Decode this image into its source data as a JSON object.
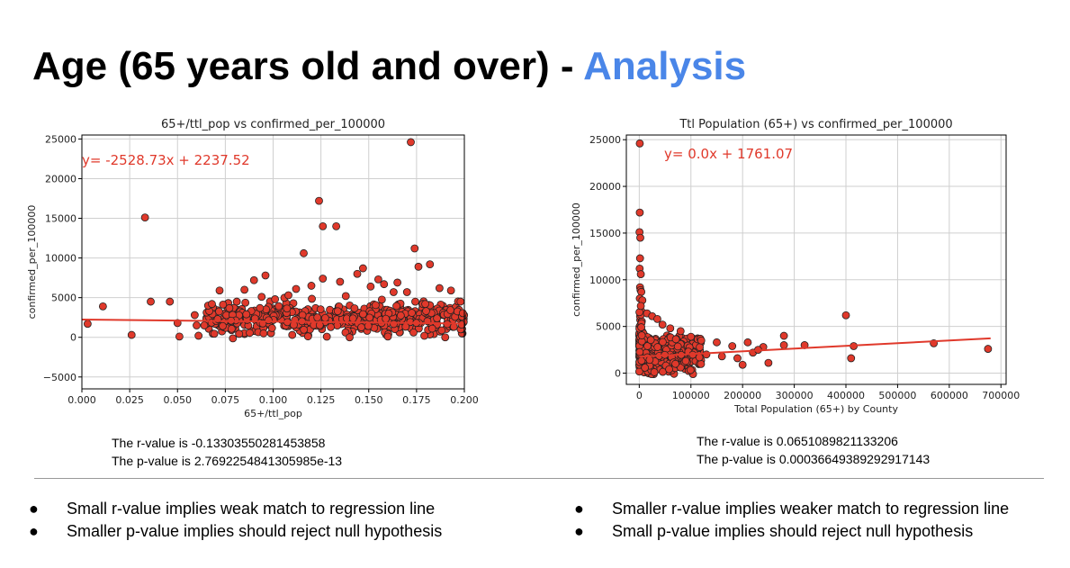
{
  "slide": {
    "title_main": "Age (65 years old and over) - ",
    "title_accent": "Analysis",
    "accent_color": "#4a86e8"
  },
  "chart_data": [
    {
      "type": "scatter",
      "title": "65+/ttl_pop vs confirmed_per_100000",
      "xlabel": "65+/ttl_pop",
      "ylabel": "confirmed_per_100000",
      "xlim": [
        0,
        0.2
      ],
      "ylim": [
        -6500,
        25500
      ],
      "xticks": [
        "0.000",
        "0.025",
        "0.050",
        "0.075",
        "0.100",
        "0.125",
        "0.150",
        "0.175",
        "0.200"
      ],
      "yticks": [
        "−5000",
        "0",
        "5000",
        "10000",
        "15000",
        "20000",
        "25000"
      ],
      "grid": true,
      "marker_color": "#e0392b",
      "line_color": "#e0392b",
      "regression": {
        "slope": -2528.73,
        "intercept": 2237.52,
        "label": "y= -2528.73x + 2237.52"
      },
      "points": [
        [
          0.003,
          1700
        ],
        [
          0.011,
          3900
        ],
        [
          0.026,
          300
        ],
        [
          0.033,
          15100
        ],
        [
          0.036,
          4500
        ],
        [
          0.046,
          4500
        ],
        [
          0.05,
          1800
        ],
        [
          0.051,
          100
        ],
        [
          0.059,
          2800
        ],
        [
          0.06,
          1500
        ],
        [
          0.061,
          200
        ],
        [
          0.064,
          1500
        ],
        [
          0.066,
          4000
        ],
        [
          0.068,
          4200
        ],
        [
          0.071,
          2300
        ],
        [
          0.072,
          5900
        ],
        [
          0.078,
          2100
        ],
        [
          0.081,
          4500
        ],
        [
          0.086,
          2900
        ],
        [
          0.09,
          7200
        ],
        [
          0.094,
          5100
        ],
        [
          0.096,
          7800
        ],
        [
          0.101,
          4800
        ],
        [
          0.108,
          5300
        ],
        [
          0.112,
          6100
        ],
        [
          0.116,
          10600
        ],
        [
          0.124,
          17200
        ],
        [
          0.126,
          14000
        ],
        [
          0.126,
          7400
        ],
        [
          0.133,
          14000
        ],
        [
          0.138,
          5200
        ],
        [
          0.144,
          8000
        ],
        [
          0.147,
          8700
        ],
        [
          0.151,
          6400
        ],
        [
          0.158,
          6700
        ],
        [
          0.163,
          5700
        ],
        [
          0.17,
          5700
        ],
        [
          0.172,
          24600
        ],
        [
          0.174,
          11200
        ],
        [
          0.176,
          8900
        ],
        [
          0.182,
          9200
        ],
        [
          0.187,
          6200
        ],
        [
          0.193,
          5900
        ],
        [
          0.198,
          4500
        ],
        [
          0.12,
          6500
        ],
        [
          0.135,
          7000
        ],
        [
          0.155,
          7300
        ],
        [
          0.165,
          6900
        ],
        [
          0.11,
          300
        ],
        [
          0.14,
          0
        ],
        [
          0.16,
          100
        ],
        [
          0.19,
          0
        ],
        [
          0.095,
          500
        ],
        [
          0.085,
          6000
        ]
      ]
    },
    {
      "type": "scatter",
      "title": "Ttl Population (65+) vs confirmed_per_100000",
      "xlabel": "Total Population (65+) by County",
      "ylabel": "confirmed_per_100000",
      "xlim": [
        -25000,
        710000
      ],
      "ylim": [
        -1200,
        25500
      ],
      "xticks": [
        "0",
        "100000",
        "200000",
        "300000",
        "400000",
        "500000",
        "600000",
        "700000"
      ],
      "yticks": [
        "0",
        "5000",
        "10000",
        "15000",
        "20000",
        "25000"
      ],
      "grid": true,
      "marker_color": "#e0392b",
      "line_color": "#e0392b",
      "regression": {
        "slope": 0.0,
        "intercept": 1761.07,
        "label": "y= 0.0x + 1761.07"
      },
      "points": [
        [
          1000,
          24600
        ],
        [
          1000,
          17200
        ],
        [
          500,
          15100
        ],
        [
          2000,
          14500
        ],
        [
          1500,
          12300
        ],
        [
          800,
          11200
        ],
        [
          3000,
          10600
        ],
        [
          1500,
          9200
        ],
        [
          2500,
          8900
        ],
        [
          4000,
          8700
        ],
        [
          1000,
          8000
        ],
        [
          6000,
          7800
        ],
        [
          3000,
          7200
        ],
        [
          15000,
          6400
        ],
        [
          25000,
          6100
        ],
        [
          35000,
          5800
        ],
        [
          45000,
          5200
        ],
        [
          60000,
          4800
        ],
        [
          80000,
          4500
        ],
        [
          100000,
          3900
        ],
        [
          120000,
          3500
        ],
        [
          150000,
          3300
        ],
        [
          180000,
          2900
        ],
        [
          210000,
          3300
        ],
        [
          240000,
          2800
        ],
        [
          250000,
          1100
        ],
        [
          280000,
          4000
        ],
        [
          280000,
          3000
        ],
        [
          320000,
          3000
        ],
        [
          400000,
          6200
        ],
        [
          410000,
          1600
        ],
        [
          415000,
          2900
        ],
        [
          570000,
          3200
        ],
        [
          675000,
          2600
        ],
        [
          130000,
          2000
        ],
        [
          160000,
          1800
        ],
        [
          190000,
          1600
        ],
        [
          220000,
          2200
        ],
        [
          90000,
          1300
        ],
        [
          70000,
          1000
        ],
        [
          200000,
          900
        ],
        [
          230000,
          2500
        ]
      ]
    }
  ],
  "stats": {
    "left": {
      "r": "The r-value is -0.13303550281453858",
      "p": "The p-value is 2.7692254841305985e-13"
    },
    "right": {
      "r": "The r-value is 0.0651089821133206",
      "p": "The p-value is 0.00036649389292917143"
    }
  },
  "bullets": {
    "left": [
      "Small r-value implies weak match to regression line",
      "Smaller p-value implies should reject null hypothesis"
    ],
    "right": [
      "Smaller r-value implies weaker match to regression line",
      "Small p-value implies should reject null hypothesis"
    ],
    "symbol": "●"
  }
}
